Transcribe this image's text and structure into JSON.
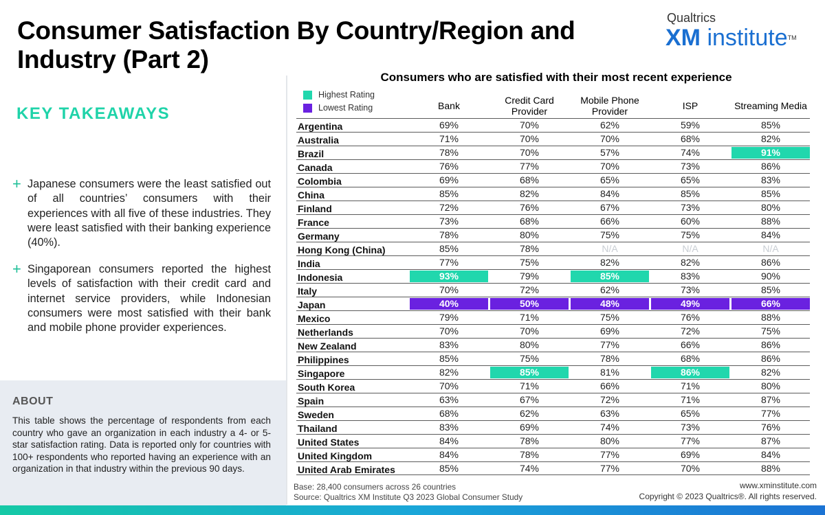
{
  "title": "Consumer Satisfaction By Country/Region and Industry (Part 2)",
  "logo": {
    "top": "Qualtrics",
    "xm": "XM",
    "institute": "institute",
    "tm": "TM"
  },
  "takeaways": {
    "heading": "KEY TAKEAWAYS",
    "bullets": [
      "Japanese consumers were the least satisfied out of all countries’ consumers with their experiences with all five of these industries. They were least satisfied with their banking experience (40%).",
      "Singaporean consumers reported the highest levels of satisfaction with their credit card and internet service providers, while Indonesian consumers were most satisfied with their bank and mobile phone provider experiences."
    ]
  },
  "about": {
    "heading": "ABOUT",
    "text": "This table shows the percentage of respondents from each country who gave an organization in each industry a 4- or 5-star satisfaction rating. Data is reported only for countries with 100+ respondents who reported having an experience with an organization in that industry within the previous 90 days."
  },
  "legend": {
    "highest": "Highest Rating",
    "lowest": "Lowest Rating"
  },
  "colors": {
    "highest": "#21d7ad",
    "lowest": "#6a21e0",
    "accent": "#1fd3a9",
    "brand": "#1a6fd1"
  },
  "footer": {
    "base": "Base: 28,400 consumers across 26 countries",
    "source": "Source: Qualtrics XM Institute Q3 2023 Global Consumer Study",
    "url": "www.xminstitute.com",
    "copyright": "Copyright © 2023 Qualtrics®. All rights reserved."
  },
  "chart_data": {
    "type": "table",
    "title": "Consumers who are satisfied with their most recent experience",
    "columns": [
      "Bank",
      "Credit Card Provider",
      "Mobile Phone Provider",
      "ISP",
      "Streaming Media"
    ],
    "rows": [
      {
        "country": "Argentina",
        "values": [
          "69%",
          "70%",
          "62%",
          "59%",
          "85%"
        ],
        "marks": [
          "",
          "",
          "",
          "",
          ""
        ]
      },
      {
        "country": "Australia",
        "values": [
          "71%",
          "70%",
          "70%",
          "68%",
          "82%"
        ],
        "marks": [
          "",
          "",
          "",
          "",
          ""
        ]
      },
      {
        "country": "Brazil",
        "values": [
          "78%",
          "70%",
          "57%",
          "74%",
          "91%"
        ],
        "marks": [
          "",
          "",
          "",
          "",
          "hi"
        ]
      },
      {
        "country": "Canada",
        "values": [
          "76%",
          "77%",
          "70%",
          "73%",
          "86%"
        ],
        "marks": [
          "",
          "",
          "",
          "",
          ""
        ]
      },
      {
        "country": "Colombia",
        "values": [
          "69%",
          "68%",
          "65%",
          "65%",
          "83%"
        ],
        "marks": [
          "",
          "",
          "",
          "",
          ""
        ]
      },
      {
        "country": "China",
        "values": [
          "85%",
          "82%",
          "84%",
          "85%",
          "85%"
        ],
        "marks": [
          "",
          "",
          "",
          "",
          ""
        ]
      },
      {
        "country": "Finland",
        "values": [
          "72%",
          "76%",
          "67%",
          "73%",
          "80%"
        ],
        "marks": [
          "",
          "",
          "",
          "",
          ""
        ]
      },
      {
        "country": "France",
        "values": [
          "73%",
          "68%",
          "66%",
          "60%",
          "88%"
        ],
        "marks": [
          "",
          "",
          "",
          "",
          ""
        ]
      },
      {
        "country": "Germany",
        "values": [
          "78%",
          "80%",
          "75%",
          "75%",
          "84%"
        ],
        "marks": [
          "",
          "",
          "",
          "",
          ""
        ]
      },
      {
        "country": "Hong Kong (China)",
        "values": [
          "85%",
          "78%",
          "N/A",
          "N/A",
          "N/A"
        ],
        "marks": [
          "",
          "",
          "",
          "",
          ""
        ]
      },
      {
        "country": "India",
        "values": [
          "77%",
          "75%",
          "82%",
          "82%",
          "86%"
        ],
        "marks": [
          "",
          "",
          "",
          "",
          ""
        ]
      },
      {
        "country": "Indonesia",
        "values": [
          "93%",
          "79%",
          "85%",
          "83%",
          "90%"
        ],
        "marks": [
          "hi",
          "",
          "hi",
          "",
          ""
        ]
      },
      {
        "country": "Italy",
        "values": [
          "70%",
          "72%",
          "62%",
          "73%",
          "85%"
        ],
        "marks": [
          "",
          "",
          "",
          "",
          ""
        ]
      },
      {
        "country": "Japan",
        "values": [
          "40%",
          "50%",
          "48%",
          "49%",
          "66%"
        ],
        "marks": [
          "lo",
          "lo",
          "lo",
          "lo",
          "lo"
        ]
      },
      {
        "country": "Mexico",
        "values": [
          "79%",
          "71%",
          "75%",
          "76%",
          "88%"
        ],
        "marks": [
          "",
          "",
          "",
          "",
          ""
        ]
      },
      {
        "country": "Netherlands",
        "values": [
          "70%",
          "70%",
          "69%",
          "72%",
          "75%"
        ],
        "marks": [
          "",
          "",
          "",
          "",
          ""
        ]
      },
      {
        "country": "New Zealand",
        "values": [
          "83%",
          "80%",
          "77%",
          "66%",
          "86%"
        ],
        "marks": [
          "",
          "",
          "",
          "",
          ""
        ]
      },
      {
        "country": "Philippines",
        "values": [
          "85%",
          "75%",
          "78%",
          "68%",
          "86%"
        ],
        "marks": [
          "",
          "",
          "",
          "",
          ""
        ]
      },
      {
        "country": "Singapore",
        "values": [
          "82%",
          "85%",
          "81%",
          "86%",
          "82%"
        ],
        "marks": [
          "",
          "hi",
          "",
          "hi",
          ""
        ]
      },
      {
        "country": "South Korea",
        "values": [
          "70%",
          "71%",
          "66%",
          "71%",
          "80%"
        ],
        "marks": [
          "",
          "",
          "",
          "",
          ""
        ]
      },
      {
        "country": "Spain",
        "values": [
          "63%",
          "67%",
          "72%",
          "71%",
          "87%"
        ],
        "marks": [
          "",
          "",
          "",
          "",
          ""
        ]
      },
      {
        "country": "Sweden",
        "values": [
          "68%",
          "62%",
          "63%",
          "65%",
          "77%"
        ],
        "marks": [
          "",
          "",
          "",
          "",
          ""
        ]
      },
      {
        "country": "Thailand",
        "values": [
          "83%",
          "69%",
          "74%",
          "73%",
          "76%"
        ],
        "marks": [
          "",
          "",
          "",
          "",
          ""
        ]
      },
      {
        "country": "United States",
        "values": [
          "84%",
          "78%",
          "80%",
          "77%",
          "87%"
        ],
        "marks": [
          "",
          "",
          "",
          "",
          ""
        ]
      },
      {
        "country": "United Kingdom",
        "values": [
          "84%",
          "78%",
          "77%",
          "69%",
          "84%"
        ],
        "marks": [
          "",
          "",
          "",
          "",
          ""
        ]
      },
      {
        "country": "United Arab Emirates",
        "values": [
          "85%",
          "74%",
          "77%",
          "70%",
          "88%"
        ],
        "marks": [
          "",
          "",
          "",
          "",
          ""
        ]
      }
    ]
  }
}
